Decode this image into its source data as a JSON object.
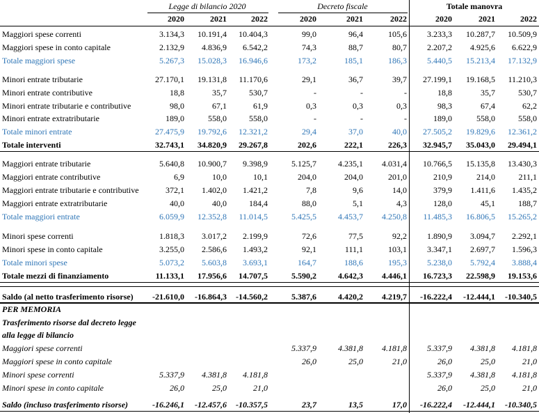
{
  "header": {
    "groups": [
      "Legge di bilancio 2020",
      "Decreto fiscale",
      "Totale manovra"
    ],
    "years": [
      "2020",
      "2021",
      "2022",
      "2020",
      "2021",
      "2022",
      "2020",
      "2021",
      "2022"
    ]
  },
  "rows": [
    {
      "label": "Maggiori spese correnti",
      "v": [
        "3.134,3",
        "10.191,4",
        "10.404,3",
        "99,0",
        "96,4",
        "105,6",
        "3.233,3",
        "10.287,7",
        "10.509,9"
      ]
    },
    {
      "label": "Maggiori spese in conto capitale",
      "v": [
        "2.132,9",
        "4.836,9",
        "6.542,2",
        "74,3",
        "88,7",
        "80,7",
        "2.207,2",
        "4.925,6",
        "6.622,9"
      ]
    },
    {
      "label": "Totale maggiori spese",
      "v": [
        "5.267,3",
        "15.028,3",
        "16.946,6",
        "173,2",
        "185,1",
        "186,3",
        "5.440,5",
        "15.213,4",
        "17.132,9"
      ]
    },
    {
      "label": "Minori entrate tributarie",
      "v": [
        "27.170,1",
        "19.131,8",
        "11.170,6",
        "29,1",
        "36,7",
        "39,7",
        "27.199,1",
        "19.168,5",
        "11.210,3"
      ]
    },
    {
      "label": "Minori entrate contributive",
      "v": [
        "18,8",
        "35,7",
        "530,7",
        "-",
        "-",
        "-",
        "18,8",
        "35,7",
        "530,7"
      ]
    },
    {
      "label": "Minori entrate tributarie e contributive",
      "v": [
        "98,0",
        "67,1",
        "61,9",
        "0,3",
        "0,3",
        "0,3",
        "98,3",
        "67,4",
        "62,2"
      ]
    },
    {
      "label": "Minori entrate extratributarie",
      "v": [
        "189,0",
        "558,0",
        "558,0",
        "-",
        "-",
        "-",
        "189,0",
        "558,0",
        "558,0"
      ]
    },
    {
      "label": "Totale minori entrate",
      "v": [
        "27.475,9",
        "19.792,6",
        "12.321,2",
        "29,4",
        "37,0",
        "40,0",
        "27.505,2",
        "19.829,6",
        "12.361,2"
      ]
    },
    {
      "label": "Totale interventi",
      "v": [
        "32.743,1",
        "34.820,9",
        "29.267,8",
        "202,6",
        "222,1",
        "226,3",
        "32.945,7",
        "35.043,0",
        "29.494,1"
      ]
    },
    {
      "label": "Maggiori entrate tributarie",
      "v": [
        "5.640,8",
        "10.900,7",
        "9.398,9",
        "5.125,7",
        "4.235,1",
        "4.031,4",
        "10.766,5",
        "15.135,8",
        "13.430,3"
      ]
    },
    {
      "label": "Maggiori entrate contributive",
      "v": [
        "6,9",
        "10,0",
        "10,1",
        "204,0",
        "204,0",
        "201,0",
        "210,9",
        "214,0",
        "211,1"
      ]
    },
    {
      "label": "Maggiori entrate tributarie e contributive",
      "v": [
        "372,1",
        "1.402,0",
        "1.421,2",
        "7,8",
        "9,6",
        "14,0",
        "379,9",
        "1.411,6",
        "1.435,2"
      ]
    },
    {
      "label": "Maggiori entrate extratributarie",
      "v": [
        "40,0",
        "40,0",
        "184,4",
        "88,0",
        "5,1",
        "4,3",
        "128,0",
        "45,1",
        "188,7"
      ]
    },
    {
      "label": "Totale maggiori entrate",
      "v": [
        "6.059,9",
        "12.352,8",
        "11.014,5",
        "5.425,5",
        "4.453,7",
        "4.250,8",
        "11.485,3",
        "16.806,5",
        "15.265,2"
      ]
    },
    {
      "label": "Minori spese correnti",
      "v": [
        "1.818,3",
        "3.017,2",
        "2.199,9",
        "72,6",
        "77,5",
        "92,2",
        "1.890,9",
        "3.094,7",
        "2.292,1"
      ]
    },
    {
      "label": "Minori spese in conto capitale",
      "v": [
        "3.255,0",
        "2.586,6",
        "1.493,2",
        "92,1",
        "111,1",
        "103,1",
        "3.347,1",
        "2.697,7",
        "1.596,3"
      ]
    },
    {
      "label": "Totale minori spese",
      "v": [
        "5.073,2",
        "5.603,8",
        "3.693,1",
        "164,7",
        "188,6",
        "195,3",
        "5.238,0",
        "5.792,4",
        "3.888,4"
      ]
    },
    {
      "label": "Totale mezzi di finanziamento",
      "v": [
        "11.133,1",
        "17.956,6",
        "14.707,5",
        "5.590,2",
        "4.642,3",
        "4.446,1",
        "16.723,3",
        "22.598,9",
        "19.153,6"
      ]
    },
    {
      "label": "Saldo (al netto trasferimento risorse)",
      "v": [
        "-21.610,0",
        "-16.864,3",
        "-14.560,2",
        "5.387,6",
        "4.420,2",
        "4.219,7",
        "-16.222,4",
        "-12.444,1",
        "-10.340,5"
      ]
    },
    {
      "label": "PER MEMORIA",
      "v": [
        "",
        "",
        "",
        "",
        "",
        "",
        "",
        "",
        ""
      ]
    },
    {
      "label": "Trasferimento risorse dal decreto legge",
      "v": [
        "",
        "",
        "",
        "",
        "",
        "",
        "",
        "",
        ""
      ]
    },
    {
      "label": "alla legge di bilancio",
      "v": [
        "",
        "",
        "",
        "",
        "",
        "",
        "",
        "",
        ""
      ]
    },
    {
      "label": "Maggiori spese correnti",
      "v": [
        "",
        "",
        "",
        "5.337,9",
        "4.381,8",
        "4.181,8",
        "5.337,9",
        "4.381,8",
        "4.181,8"
      ]
    },
    {
      "label": "Maggiori spese in conto capitale",
      "v": [
        "",
        "",
        "",
        "26,0",
        "25,0",
        "21,0",
        "26,0",
        "25,0",
        "21,0"
      ]
    },
    {
      "label": "Minori spese correnti",
      "v": [
        "5.337,9",
        "4.381,8",
        "4.181,8",
        "",
        "",
        "",
        "5.337,9",
        "4.381,8",
        "4.181,8"
      ]
    },
    {
      "label": "Minori spese in conto capitale",
      "v": [
        "26,0",
        "25,0",
        "21,0",
        "",
        "",
        "",
        "26,0",
        "25,0",
        "21,0"
      ]
    },
    {
      "label": "Saldo (incluso trasferimento risorse)",
      "v": [
        "-16.246,1",
        "-12.457,6",
        "-10.357,5",
        "23,7",
        "13,5",
        "17,0",
        "-16.222,4",
        "-12.444,1",
        "-10.340,5"
      ]
    }
  ]
}
